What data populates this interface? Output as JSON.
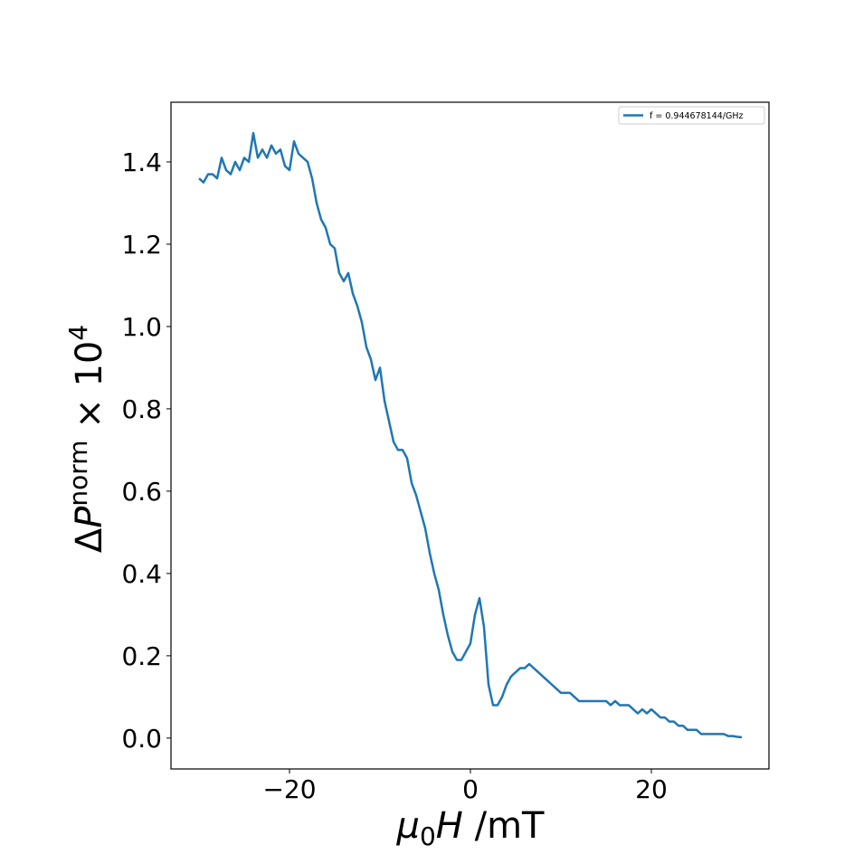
{
  "chart_data": {
    "type": "line",
    "x_label": {
      "mu": "μ",
      "sub": "0",
      "h": "H",
      "unit": " /mT"
    },
    "y_label": {
      "delta": "Δ",
      "p": "P",
      "sup": "norm",
      "times": " × 10",
      "exp": "4"
    },
    "x": [
      -30,
      -29.5,
      -29,
      -28.5,
      -28,
      -27.5,
      -27,
      -26.5,
      -26,
      -25.5,
      -25,
      -24.5,
      -24,
      -23.5,
      -23,
      -22.5,
      -22,
      -21.5,
      -21,
      -20.5,
      -20,
      -19.5,
      -19,
      -18.5,
      -18,
      -17.5,
      -17,
      -16.5,
      -16,
      -15.5,
      -15,
      -14.5,
      -14,
      -13.5,
      -13,
      -12.5,
      -12,
      -11.5,
      -11,
      -10.5,
      -10,
      -9.5,
      -9,
      -8.5,
      -8,
      -7.5,
      -7,
      -6.5,
      -6,
      -5.5,
      -5,
      -4.5,
      -4,
      -3.5,
      -3,
      -2.5,
      -2,
      -1.5,
      -1,
      -0.5,
      0,
      0.5,
      1,
      1.5,
      2,
      2.5,
      3,
      3.5,
      4,
      4.5,
      5,
      5.5,
      6,
      6.5,
      7,
      7.5,
      8,
      8.5,
      9,
      9.5,
      10,
      10.5,
      11,
      11.5,
      12,
      12.5,
      13,
      13.5,
      14,
      14.5,
      15,
      15.5,
      16,
      16.5,
      17,
      17.5,
      18,
      18.5,
      19,
      19.5,
      20,
      20.5,
      21,
      21.5,
      22,
      22.5,
      23,
      23.5,
      24,
      24.5,
      25,
      25.5,
      26,
      26.5,
      27,
      27.5,
      28,
      28.5,
      29,
      29.5,
      30
    ],
    "series": [
      {
        "name": "f = 0.944678144/GHz",
        "color": "#1f77b4",
        "values": [
          1.36,
          1.35,
          1.37,
          1.37,
          1.36,
          1.41,
          1.38,
          1.37,
          1.4,
          1.38,
          1.41,
          1.4,
          1.47,
          1.41,
          1.43,
          1.41,
          1.44,
          1.42,
          1.43,
          1.39,
          1.38,
          1.45,
          1.42,
          1.41,
          1.4,
          1.36,
          1.3,
          1.26,
          1.24,
          1.2,
          1.19,
          1.13,
          1.11,
          1.13,
          1.08,
          1.05,
          1.01,
          0.95,
          0.92,
          0.87,
          0.9,
          0.82,
          0.77,
          0.72,
          0.7,
          0.7,
          0.68,
          0.62,
          0.59,
          0.55,
          0.51,
          0.45,
          0.4,
          0.36,
          0.3,
          0.25,
          0.21,
          0.19,
          0.19,
          0.21,
          0.23,
          0.3,
          0.34,
          0.27,
          0.13,
          0.08,
          0.08,
          0.1,
          0.13,
          0.15,
          0.16,
          0.17,
          0.17,
          0.18,
          0.17,
          0.16,
          0.15,
          0.14,
          0.13,
          0.12,
          0.11,
          0.11,
          0.11,
          0.1,
          0.09,
          0.09,
          0.09,
          0.09,
          0.09,
          0.09,
          0.09,
          0.08,
          0.09,
          0.08,
          0.08,
          0.08,
          0.07,
          0.06,
          0.07,
          0.06,
          0.07,
          0.06,
          0.05,
          0.05,
          0.04,
          0.04,
          0.03,
          0.03,
          0.02,
          0.02,
          0.02,
          0.01,
          0.01,
          0.01,
          0.01,
          0.01,
          0.01,
          0.005,
          0.005,
          0.003,
          0.002
        ]
      }
    ],
    "xlim": [
      -33.1,
      33.0
    ],
    "xticks": [
      {
        "value": -20,
        "label": "−20"
      },
      0,
      20
    ],
    "ylim": [
      -0.075,
      1.545
    ],
    "yticks": [
      {
        "value": 0,
        "label": "0.0"
      },
      0.2,
      0.4,
      0.6,
      0.8,
      {
        "value": 1,
        "label": "1.0"
      },
      1.2,
      1.4
    ],
    "legend": "upper right",
    "grid": false
  }
}
